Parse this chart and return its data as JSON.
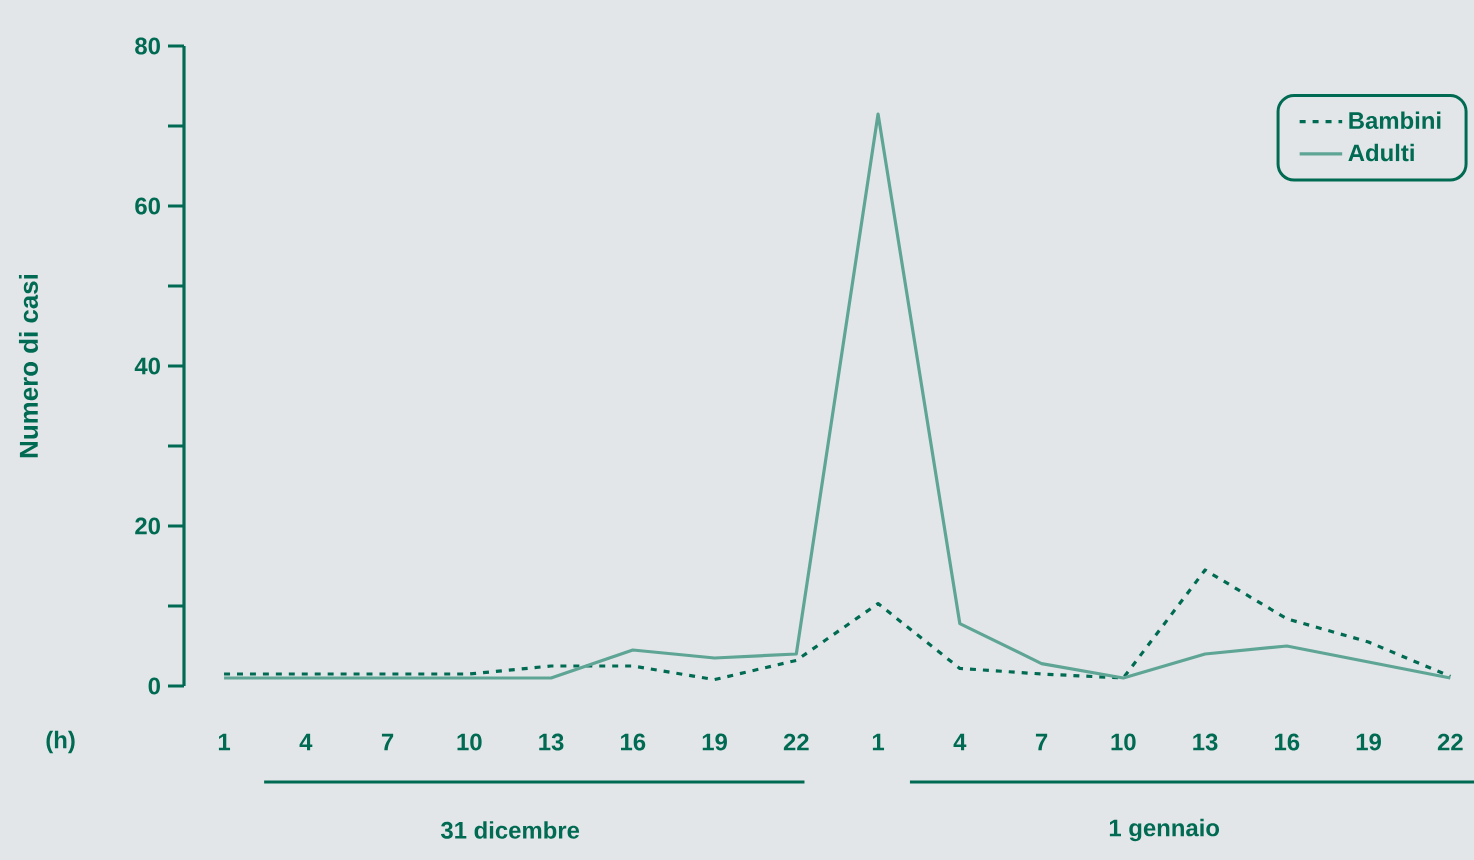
{
  "chart_data": {
    "type": "line",
    "xlabel": "(h)",
    "ylabel": "Numero di casi",
    "categories": [
      "1",
      "4",
      "7",
      "10",
      "13",
      "16",
      "19",
      "22",
      "1",
      "4",
      "7",
      "10",
      "13",
      "16",
      "19",
      "22"
    ],
    "series": [
      {
        "name": "Bambini",
        "color": "#006b52",
        "line_style": "dashed",
        "values": [
          1.5,
          1.5,
          1.5,
          1.5,
          2.5,
          2.5,
          0.8,
          3.2,
          10.3,
          2.2,
          1.5,
          1,
          14.5,
          8.4,
          5.5,
          1.2
        ]
      },
      {
        "name": "Adulti",
        "color": "#5fa596",
        "line_style": "solid",
        "values": [
          1,
          1,
          1,
          1,
          1,
          4.5,
          3.5,
          4,
          71.5,
          7.8,
          2.8,
          1,
          4,
          5,
          3,
          1
        ]
      }
    ],
    "ylim": [
      0,
      80
    ],
    "yticks": [
      0,
      {
        "value": 10,
        "label": null
      },
      20,
      {
        "value": 30,
        "label": null
      },
      40,
      {
        "value": 50,
        "label": null
      },
      60,
      {
        "value": 70,
        "label": null
      },
      80
    ],
    "legend": "top right",
    "grid": false,
    "annotations": [
      "31 dicembre",
      "1 gennaio"
    ]
  }
}
